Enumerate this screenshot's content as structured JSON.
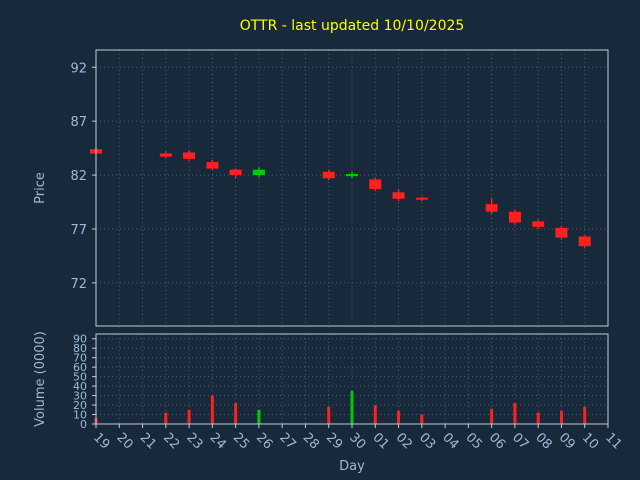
{
  "window": {
    "title": "OTTR - last updated 10/10/2025"
  },
  "colors": {
    "background": "#17293b",
    "grid": "#4a5d72",
    "axis": "#c3ccd6",
    "tick_label": "#9fb8d4",
    "axis_label": "#9fb8d4",
    "title": "#ffff00",
    "up": "#00cc00",
    "down": "#ff2020"
  },
  "price_axis": {
    "label": "Price",
    "ticks": [
      72,
      77,
      82,
      87,
      92
    ],
    "ylim": [
      68,
      93.6
    ]
  },
  "volume_axis": {
    "label": "Volume (0000)",
    "ticks": [
      0,
      10,
      20,
      30,
      40,
      50,
      60,
      70,
      80,
      90
    ],
    "ylim": [
      0,
      95
    ]
  },
  "x_axis": {
    "label": "Day",
    "categories": [
      "19",
      "20",
      "21",
      "22",
      "23",
      "24",
      "25",
      "26",
      "27",
      "28",
      "29",
      "30",
      "01",
      "02",
      "03",
      "04",
      "05",
      "06",
      "07",
      "08",
      "09",
      "10",
      "11"
    ]
  },
  "chart_data": {
    "type": "candlestick+volume",
    "title": "OTTR - last updated 10/10/2025",
    "xlabel": "Day",
    "ylabel_price": "Price",
    "ylabel_volume": "Volume (0000)",
    "price_ylim": [
      68,
      93.6
    ],
    "volume_ylim": [
      0,
      95
    ],
    "grid": "dotted",
    "categories": [
      "19",
      "20",
      "21",
      "22",
      "23",
      "24",
      "25",
      "26",
      "27",
      "28",
      "29",
      "30",
      "01",
      "02",
      "03",
      "04",
      "05",
      "06",
      "07",
      "08",
      "09",
      "10",
      "11"
    ],
    "candles": [
      {
        "day": "19",
        "open": 84.4,
        "high": 84.6,
        "low": 83.9,
        "close": 84.0,
        "volume": 6
      },
      {
        "day": "22",
        "open": 84.0,
        "high": 84.2,
        "low": 83.6,
        "close": 83.7,
        "volume": 12
      },
      {
        "day": "23",
        "open": 84.1,
        "high": 84.3,
        "low": 83.3,
        "close": 83.5,
        "volume": 15
      },
      {
        "day": "24",
        "open": 83.2,
        "high": 83.4,
        "low": 82.5,
        "close": 82.6,
        "volume": 30
      },
      {
        "day": "25",
        "open": 82.5,
        "high": 82.6,
        "low": 81.7,
        "close": 82.0,
        "volume": 22
      },
      {
        "day": "26",
        "open": 82.0,
        "high": 82.7,
        "low": 81.8,
        "close": 82.5,
        "volume": 15
      },
      {
        "day": "29",
        "open": 82.3,
        "high": 82.5,
        "low": 81.5,
        "close": 81.7,
        "volume": 18
      },
      {
        "day": "30",
        "open": 81.9,
        "high": 82.3,
        "low": 81.7,
        "close": 82.1,
        "volume": 35
      },
      {
        "day": "01",
        "open": 81.6,
        "high": 81.8,
        "low": 80.5,
        "close": 80.7,
        "volume": 20
      },
      {
        "day": "02",
        "open": 80.4,
        "high": 80.7,
        "low": 79.6,
        "close": 79.8,
        "volume": 14
      },
      {
        "day": "03",
        "open": 79.9,
        "high": 80.0,
        "low": 79.6,
        "close": 79.8,
        "volume": 10
      },
      {
        "day": "06",
        "open": 79.3,
        "high": 79.9,
        "low": 78.4,
        "close": 78.6,
        "volume": 16
      },
      {
        "day": "07",
        "open": 78.6,
        "high": 78.8,
        "low": 77.4,
        "close": 77.6,
        "volume": 22
      },
      {
        "day": "08",
        "open": 77.7,
        "high": 77.9,
        "low": 77.0,
        "close": 77.2,
        "volume": 12
      },
      {
        "day": "09",
        "open": 77.1,
        "high": 77.3,
        "low": 76.0,
        "close": 76.2,
        "volume": 14
      },
      {
        "day": "10",
        "open": 76.3,
        "high": 76.4,
        "low": 75.2,
        "close": 75.4,
        "volume": 18
      }
    ]
  }
}
